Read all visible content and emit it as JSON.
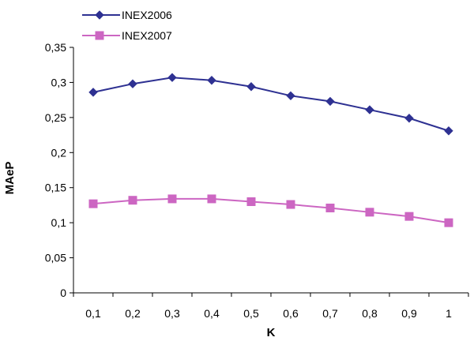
{
  "chart_data": {
    "type": "line",
    "title": "",
    "xlabel": "K",
    "ylabel": "MAeP",
    "x": [
      "0,1",
      "0,2",
      "0,3",
      "0,4",
      "0,5",
      "0,6",
      "0,7",
      "0,8",
      "0,9",
      "1"
    ],
    "y_ticks": [
      "0",
      "0,05",
      "0,1",
      "0,15",
      "0,2",
      "0,25",
      "0,3",
      "0,35"
    ],
    "ylim": [
      0,
      0.35
    ],
    "grid": false,
    "legend_position": "top-left",
    "series": [
      {
        "name": "INEX2006",
        "color": "#2E3192",
        "marker": "diamond",
        "values": [
          0.286,
          0.298,
          0.307,
          0.303,
          0.294,
          0.281,
          0.273,
          0.261,
          0.249,
          0.231
        ]
      },
      {
        "name": "INEX2007",
        "color": "#CC66C2",
        "marker": "square",
        "values": [
          0.127,
          0.132,
          0.134,
          0.134,
          0.13,
          0.126,
          0.121,
          0.115,
          0.109,
          0.1
        ]
      }
    ]
  }
}
